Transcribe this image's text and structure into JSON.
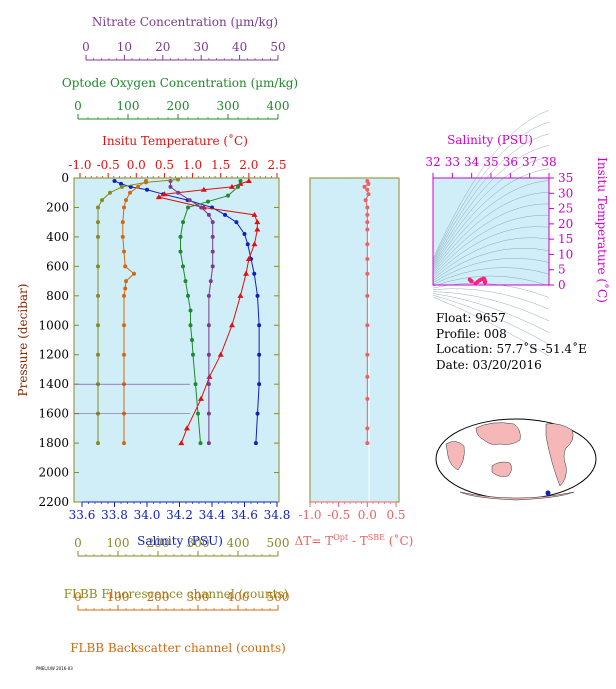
{
  "panels": {
    "nitrate": {
      "label": "Nitrate Concentration (µm/kg)",
      "ticks": [
        "0",
        "10",
        "20",
        "30",
        "40",
        "50"
      ],
      "color": "#7d3a8f"
    },
    "oxygen": {
      "label": "Optode Oxygen Concentration (µm/kg)",
      "ticks": [
        "0",
        "100",
        "200",
        "300",
        "400"
      ],
      "color": "#1e8a2a"
    },
    "temperature": {
      "label": "Insitu Temperature (˚C)",
      "ticks": [
        "-1.0",
        "-0.5",
        "0.0",
        "0.5",
        "1.0",
        "1.5",
        "2.0",
        "2.5"
      ],
      "color": "#e01010"
    },
    "salinity_bottom": {
      "label": "Salinity (PSU)",
      "ticks": [
        "33.6",
        "33.8",
        "34.0",
        "34.2",
        "34.4",
        "34.6",
        "34.8"
      ],
      "color": "#1020c0"
    },
    "fluorescence": {
      "label": "FLBB Fluorescence channel (counts)",
      "ticks": [
        "0",
        "100",
        "200",
        "300",
        "400",
        "500"
      ],
      "color": "#8a8a20"
    },
    "backscatter": {
      "label": "FLBB Backscatter channel (counts)",
      "ticks": [
        "0",
        "100",
        "200",
        "300",
        "400",
        "500"
      ],
      "color": "#d06a10"
    },
    "pressure": {
      "label": "Pressure (decibar)",
      "ticks": [
        "0",
        "200",
        "400",
        "600",
        "800",
        "1000",
        "1200",
        "1400",
        "1600",
        "1800",
        "2000",
        "2200"
      ],
      "color": "#8b2500"
    },
    "delta_t": {
      "label_main": "ΔT= T",
      "label_sup1": "Opt",
      "label_mid": " - T",
      "label_sup2": "SBE",
      "label_end": " (˚C)",
      "ticks": [
        "-1.0",
        "-0.5",
        "0.0",
        "0.5"
      ],
      "color": "#f06060"
    },
    "ts": {
      "title": "Salinity (PSU)",
      "xticks": [
        "32",
        "33",
        "34",
        "35",
        "36",
        "37",
        "38"
      ],
      "ylabel": "Insitu Temperature (˚C)",
      "yticks": [
        "0",
        "5",
        "10",
        "15",
        "20",
        "25",
        "30",
        "35"
      ],
      "color": "#cc00cc"
    }
  },
  "info": {
    "float": "Float:  9657",
    "profile": "Profile:  008",
    "location": "Location:  57.7˚S  -51.4˚E",
    "date": "Date:  03/20/2016"
  },
  "footer": "PMEL/UW 2016-03",
  "colors": {
    "plot_bg": "#cfeef8",
    "map_land": "#f5b8b8",
    "map_ocean": "#ffffff"
  },
  "chart_data": [
    {
      "type": "line",
      "title": "",
      "ylabel": "Pressure (decibar)",
      "ylim": [
        2200,
        0
      ],
      "series": [
        {
          "name": "Salinity (PSU)",
          "xlim": [
            33.6,
            34.8
          ],
          "color": "#1020c0",
          "points": [
            [
              33.8,
              20
            ],
            [
              33.84,
              40
            ],
            [
              33.9,
              60
            ],
            [
              34.0,
              80
            ],
            [
              34.1,
              110
            ],
            [
              34.25,
              150
            ],
            [
              34.4,
              200
            ],
            [
              34.48,
              250
            ],
            [
              34.55,
              300
            ],
            [
              34.6,
              380
            ],
            [
              34.62,
              450
            ],
            [
              34.64,
              550
            ],
            [
              34.66,
              650
            ],
            [
              34.68,
              800
            ],
            [
              34.69,
              1000
            ],
            [
              34.69,
              1200
            ],
            [
              34.69,
              1400
            ],
            [
              34.68,
              1600
            ],
            [
              34.67,
              1800
            ]
          ]
        },
        {
          "name": "Insitu Temperature (˚C)",
          "xlim": [
            -1.0,
            2.5
          ],
          "color": "#e01010",
          "points": [
            [
              2.0,
              20
            ],
            [
              1.85,
              40
            ],
            [
              1.7,
              60
            ],
            [
              1.2,
              80
            ],
            [
              0.5,
              110
            ],
            [
              0.4,
              130
            ],
            [
              1.2,
              200
            ],
            [
              2.1,
              250
            ],
            [
              2.15,
              300
            ],
            [
              2.15,
              350
            ],
            [
              2.1,
              450
            ],
            [
              2.0,
              550
            ],
            [
              1.95,
              650
            ],
            [
              1.85,
              800
            ],
            [
              1.7,
              1000
            ],
            [
              1.5,
              1200
            ],
            [
              1.3,
              1350
            ],
            [
              1.15,
              1500
            ],
            [
              0.9,
              1700
            ],
            [
              0.8,
              1800
            ]
          ]
        },
        {
          "name": "Optode Oxygen Concentration (µm/kg)",
          "xlim": [
            0,
            400
          ],
          "color": "#1e8a2a",
          "points": [
            [
              325,
              20
            ],
            [
              320,
              60
            ],
            [
              300,
              120
            ],
            [
              260,
              160
            ],
            [
              220,
              200
            ],
            [
              210,
              300
            ],
            [
              205,
              400
            ],
            [
              205,
              500
            ],
            [
              210,
              600
            ],
            [
              215,
              700
            ],
            [
              220,
              800
            ],
            [
              225,
              900
            ],
            [
              225,
              1000
            ],
            [
              228,
              1100
            ],
            [
              230,
              1200
            ],
            [
              235,
              1400
            ],
            [
              240,
              1600
            ],
            [
              245,
              1800
            ]
          ]
        },
        {
          "name": "Nitrate Concentration (µm/kg)",
          "xlim": [
            0,
            50
          ],
          "color": "#7d3a8f",
          "points": [
            [
              22,
              20
            ],
            [
              22,
              60
            ],
            [
              24,
              100
            ],
            [
              27,
              150
            ],
            [
              30,
              200
            ],
            [
              32,
              250
            ],
            [
              33,
              300
            ],
            [
              33,
              400
            ],
            [
              33,
              500
            ],
            [
              33,
              600
            ],
            [
              32.5,
              700
            ],
            [
              32,
              800
            ],
            [
              32,
              1000
            ],
            [
              32,
              1200
            ],
            [
              32,
              1400
            ],
            [
              32,
              1600
            ],
            [
              32,
              1800
            ]
          ]
        },
        {
          "name": "FLBB Fluorescence channel (counts)",
          "xlim": [
            0,
            500
          ],
          "color": "#8a8a20",
          "points": [
            [
              250,
              10
            ],
            [
              170,
              30
            ],
            [
              110,
              60
            ],
            [
              80,
              100
            ],
            [
              60,
              150
            ],
            [
              50,
              200
            ],
            [
              50,
              300
            ],
            [
              50,
              400
            ],
            [
              50,
              600
            ],
            [
              50,
              800
            ],
            [
              50,
              1000
            ],
            [
              50,
              1200
            ],
            [
              50,
              1400
            ],
            [
              50,
              1600
            ],
            [
              50,
              1800
            ]
          ]
        },
        {
          "name": "FLBB Backscatter channel (counts)",
          "xlim": [
            0,
            500
          ],
          "color": "#d06a10",
          "points": [
            [
              170,
              20
            ],
            [
              150,
              60
            ],
            [
              130,
              100
            ],
            [
              120,
              150
            ],
            [
              115,
              200
            ],
            [
              112,
              300
            ],
            [
              112,
              400
            ],
            [
              115,
              500
            ],
            [
              118,
              600
            ],
            [
              140,
              650
            ],
            [
              120,
              700
            ],
            [
              118,
              750
            ],
            [
              115,
              800
            ],
            [
              115,
              1000
            ],
            [
              115,
              1200
            ],
            [
              115,
              1400
            ],
            [
              115,
              1600
            ],
            [
              115,
              1800
            ]
          ]
        }
      ]
    },
    {
      "type": "scatter",
      "title": "",
      "xlabel": "ΔT= T^Opt - T^SBE (˚C)",
      "xlim": [
        -1.0,
        0.5
      ],
      "ylim": [
        2200,
        0
      ],
      "series": [
        {
          "name": "",
          "points": [
            [
              0.0,
              20
            ],
            [
              0.02,
              40
            ],
            [
              -0.05,
              60
            ],
            [
              0.0,
              80
            ],
            [
              0.02,
              110
            ],
            [
              -0.03,
              150
            ],
            [
              0.0,
              200
            ],
            [
              0.0,
              250
            ],
            [
              0.0,
              300
            ],
            [
              0.0,
              350
            ],
            [
              0.0,
              450
            ],
            [
              0.0,
              550
            ],
            [
              0.0,
              650
            ],
            [
              0.0,
              800
            ],
            [
              0.0,
              1000
            ],
            [
              0.0,
              1200
            ],
            [
              0.0,
              1350
            ],
            [
              0.0,
              1500
            ],
            [
              0.0,
              1700
            ],
            [
              0.0,
              1800
            ]
          ]
        }
      ]
    },
    {
      "type": "scatter",
      "title": "Salinity (PSU)",
      "xlabel": "Salinity (PSU)",
      "ylabel": "Insitu Temperature (˚C)",
      "xlim": [
        32,
        38
      ],
      "ylim": [
        0,
        35
      ],
      "series": [
        {
          "name": "",
          "points": [
            [
              34.2,
              0.5
            ],
            [
              34.3,
              1.0
            ],
            [
              34.4,
              1.5
            ],
            [
              34.5,
              1.8
            ],
            [
              34.6,
              2.1
            ],
            [
              34.65,
              2.0
            ],
            [
              34.68,
              1.5
            ],
            [
              34.69,
              1.0
            ],
            [
              34.69,
              0.8
            ],
            [
              34.0,
              1.2
            ],
            [
              33.9,
              1.8
            ],
            [
              33.95,
              1.4
            ]
          ]
        }
      ]
    }
  ]
}
